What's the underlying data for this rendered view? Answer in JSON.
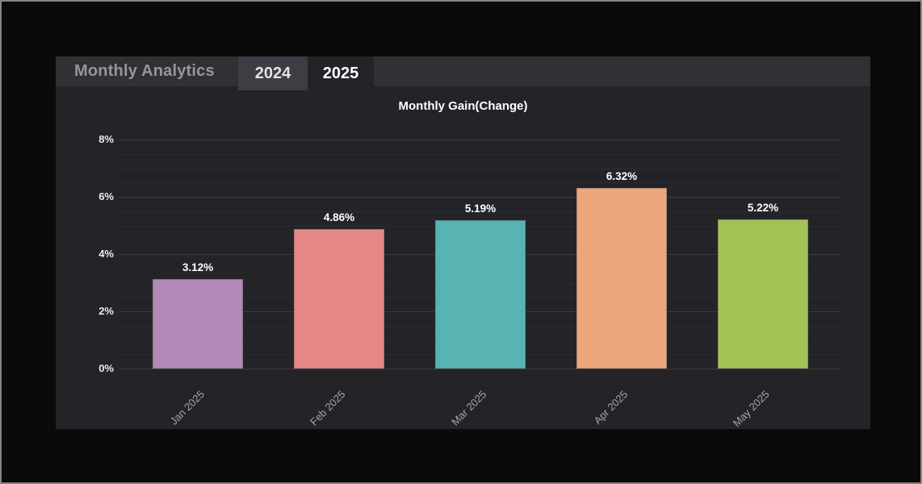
{
  "header": {
    "title": "Monthly Analytics",
    "tabs": [
      {
        "label": "2024",
        "active": false
      },
      {
        "label": "2025",
        "active": true
      }
    ]
  },
  "chart_data": {
    "type": "bar",
    "title": "Monthly Gain(Change)",
    "categories": [
      "Jan 2025",
      "Feb 2025",
      "Mar 2025",
      "Apr 2025",
      "May 2025"
    ],
    "values": [
      3.12,
      4.86,
      5.19,
      6.32,
      5.22
    ],
    "value_labels": [
      "3.12%",
      "4.86%",
      "5.19%",
      "6.32%",
      "5.22%"
    ],
    "bar_colors": [
      "#b289b7",
      "#e68788",
      "#58b4b2",
      "#eca77d",
      "#a3c256"
    ],
    "ylim": [
      0,
      8
    ],
    "yticks": [
      {
        "value": 0,
        "label": "0%"
      },
      {
        "value": 2,
        "label": "2%"
      },
      {
        "value": 4,
        "label": "4%"
      },
      {
        "value": 6,
        "label": "6%"
      },
      {
        "value": 8,
        "label": "8%"
      }
    ],
    "minor_grid_step": 0.5,
    "major_grid_step": 2,
    "grid": true,
    "legend": "none",
    "xlabel": "",
    "ylabel": ""
  },
  "colors": {
    "panel_bg": "#242428",
    "header_bg": "#313135",
    "inactive_tab_bg": "#3d3d43",
    "major_grid": "#3b3b3f",
    "minor_grid": "#2c2c30",
    "axis_text": "#ececec",
    "category_text": "#a6a6a6"
  }
}
